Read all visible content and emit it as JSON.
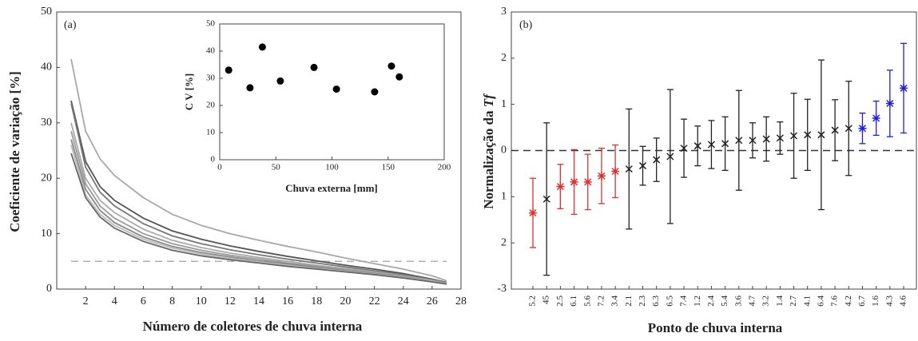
{
  "chart_data": [
    {
      "type": "line",
      "panel_label": "(a)",
      "x_label": "Número de coletores de chuva interna",
      "y_label": "Coeficiente de variação [%]",
      "xlim": [
        0,
        28
      ],
      "xticks": [
        2,
        4,
        6,
        8,
        10,
        12,
        14,
        16,
        18,
        20,
        22,
        24,
        26,
        28
      ],
      "ylim": [
        0,
        50
      ],
      "yticks": [
        0,
        10,
        20,
        30,
        40,
        50
      ],
      "x": [
        1,
        2,
        3,
        4,
        6,
        8,
        10,
        12,
        14,
        16,
        18,
        20,
        22,
        24,
        26,
        27
      ],
      "hline": 5,
      "hline_color": "#b0b0b0",
      "series": [
        {
          "color": "#a8a8a8",
          "values": [
            41.5,
            28.5,
            23.5,
            20.5,
            16.5,
            13.5,
            11.5,
            10,
            8.8,
            7.7,
            6.7,
            5.6,
            4.6,
            3.6,
            2.4,
            1.5
          ]
        },
        {
          "color": "#555555",
          "values": [
            34,
            23,
            18.5,
            16,
            12.8,
            10.5,
            9,
            7.8,
            6.8,
            5.9,
            5.1,
            4.3,
            3.6,
            2.8,
            1.8,
            1.2
          ]
        },
        {
          "color": "#777777",
          "values": [
            33.5,
            22,
            17.5,
            15,
            11.8,
            9.6,
            8.2,
            7.1,
            6.2,
            5.4,
            4.7,
            4,
            3.3,
            2.6,
            1.7,
            1.1
          ]
        },
        {
          "color": "#aaaaaa",
          "values": [
            30,
            20,
            16,
            13.8,
            10.8,
            8.8,
            7.5,
            6.5,
            5.7,
            5,
            4.3,
            3.7,
            3.1,
            2.4,
            1.6,
            1.1
          ]
        },
        {
          "color": "#999999",
          "values": [
            28.5,
            19,
            15,
            12.8,
            10,
            8.2,
            7,
            6.1,
            5.4,
            4.7,
            4.1,
            3.5,
            2.9,
            2.3,
            1.5,
            1
          ]
        },
        {
          "color": "#888888",
          "values": [
            27,
            18,
            14.2,
            12,
            9.4,
            7.7,
            6.6,
            5.8,
            5.1,
            4.5,
            3.9,
            3.3,
            2.8,
            2.2,
            1.4,
            1
          ]
        },
        {
          "color": "#bbbbbb",
          "values": [
            26,
            17,
            13.5,
            11.5,
            9,
            7.4,
            6.3,
            5.5,
            4.9,
            4.3,
            3.7,
            3.2,
            2.7,
            2.1,
            1.4,
            0.9
          ]
        },
        {
          "color": "#666666",
          "values": [
            24.5,
            16.5,
            13,
            11,
            8.6,
            7,
            6,
            5.3,
            4.7,
            4.1,
            3.6,
            3.1,
            2.6,
            2,
            1.3,
            0.9
          ]
        }
      ]
    },
    {
      "type": "scatter",
      "x_label": "Chuva externa [mm]",
      "y_label": "C V [%]",
      "xlim": [
        0,
        200
      ],
      "xticks": [
        0,
        50,
        100,
        150,
        200
      ],
      "ylim": [
        0,
        50
      ],
      "yticks": [
        0,
        10,
        20,
        30,
        40,
        50
      ],
      "color": "#000000",
      "x": [
        8,
        27,
        38,
        54,
        84,
        104,
        138,
        153,
        160
      ],
      "values": [
        33,
        26.5,
        41.5,
        29,
        34,
        26,
        25,
        34.5,
        30.5
      ]
    },
    {
      "type": "errorbar",
      "panel_label": "(b)",
      "x_label": "Ponto de chuva interna",
      "y_label": "Normalização da ",
      "y_label_symbol": "Tf",
      "ylim": [
        -3,
        3
      ],
      "yticks": [
        {
          "value": -3,
          "label": "-3"
        },
        {
          "value": -2,
          "label": "2"
        },
        {
          "value": -1,
          "label": "1"
        },
        0,
        1,
        2,
        3
      ],
      "hline": 0,
      "hline_color": "#333333",
      "categories": [
        "5.2",
        "45",
        "2.5",
        "6.1",
        "5.6",
        "7.2",
        "3.4",
        "2.1",
        "2.3",
        "6.3",
        "6.5",
        "7.4",
        "1.2",
        "2.4",
        "5.4",
        "3.6",
        "4.7",
        "3.2",
        "1.4",
        "2.7",
        "4.1",
        "6.4",
        "7.6",
        "4.2",
        "6.7",
        "1.6",
        "4.3",
        "4.6"
      ],
      "values": [
        -1.35,
        -1.05,
        -0.78,
        -0.68,
        -0.68,
        -0.55,
        -0.45,
        -0.4,
        -0.33,
        -0.2,
        -0.13,
        0.05,
        0.1,
        0.13,
        0.15,
        0.22,
        0.22,
        0.25,
        0.27,
        0.32,
        0.34,
        0.34,
        0.44,
        0.48,
        0.48,
        0.7,
        1.02,
        1.35
      ],
      "errors": [
        0.75,
        1.65,
        0.48,
        0.7,
        0.6,
        0.6,
        0.57,
        1.3,
        0.42,
        0.47,
        1.45,
        0.63,
        0.43,
        0.52,
        0.58,
        1.08,
        0.38,
        0.48,
        0.35,
        0.92,
        0.77,
        1.62,
        0.66,
        1.02,
        0.33,
        0.37,
        0.72,
        0.97
      ],
      "colors": [
        "#e03030",
        "#222222",
        "#e03030",
        "#e03030",
        "#e03030",
        "#e03030",
        "#e03030",
        "#222222",
        "#222222",
        "#222222",
        "#222222",
        "#222222",
        "#222222",
        "#222222",
        "#222222",
        "#222222",
        "#222222",
        "#222222",
        "#222222",
        "#222222",
        "#222222",
        "#222222",
        "#222222",
        "#222222",
        "#2020e0",
        "#2020e0",
        "#2020e0",
        "#2020e0"
      ]
    }
  ]
}
